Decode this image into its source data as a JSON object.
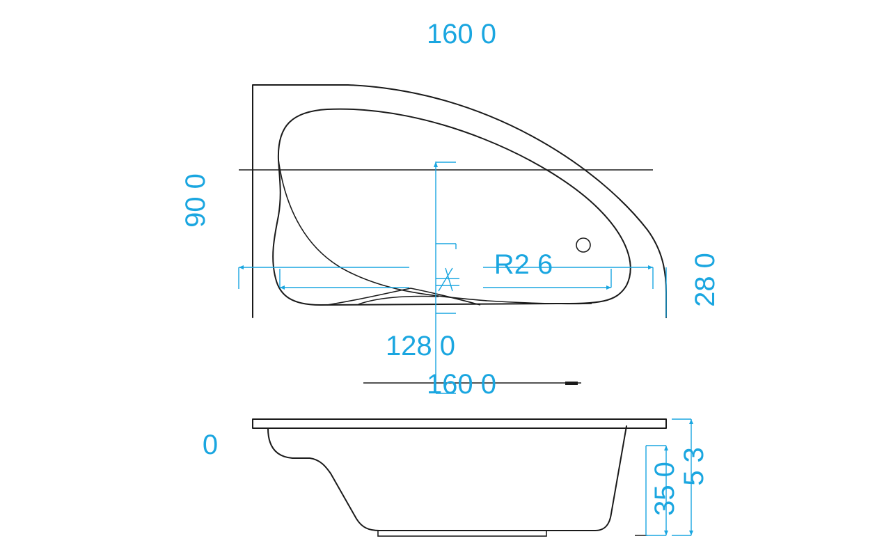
{
  "dimensions": {
    "top_width": "160 0",
    "depth_left": "90 0",
    "right_height": "28 0",
    "radius": "R2 6",
    "inner_length": "128 0",
    "side_width": "160 0",
    "side_left": "0",
    "side_depth": "35 0",
    "side_total": "5 3"
  },
  "colors": {
    "dimension": "#1aa6e0",
    "outline": "#1a1a1a"
  }
}
